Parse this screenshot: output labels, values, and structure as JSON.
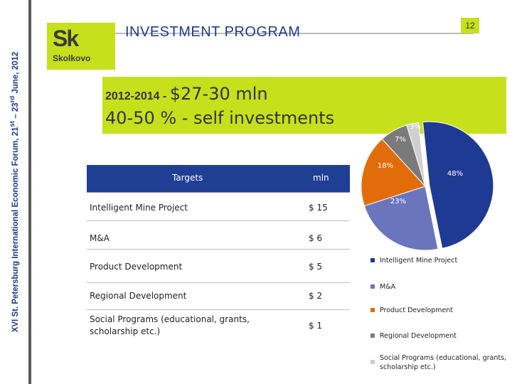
{
  "sidebar": {
    "text_main": "XVI St. Petersburg International Economic Forum, 21",
    "sup1": "st",
    "text_mid": " – 23",
    "sup2": "rd",
    "text_end": " June, 2012"
  },
  "logo": {
    "mark": "Sk",
    "word": "Skolkovo"
  },
  "header": {
    "title": "INVESTMENT PROGRAM",
    "page_number": "12"
  },
  "banner": {
    "years": "2012-2014 - ",
    "amount": "$27-30 mln",
    "line2": "40-50 % - self investments"
  },
  "table": {
    "headers": [
      "Targets",
      "mln"
    ],
    "rows": [
      {
        "target": "Intelligent Mine Project",
        "mln": "$ 15"
      },
      {
        "target": "M&A",
        "mln": "$ 6"
      },
      {
        "target": "Product Development",
        "mln": "$ 5"
      },
      {
        "target": "Regional Development",
        "mln": "$ 2"
      },
      {
        "target": "Social Programs (educational, grants, scholarship etc.)",
        "mln": "$ 1"
      }
    ]
  },
  "chart_data": {
    "type": "pie",
    "categories": [
      "Intelligent Mine Project",
      "M&A",
      "Product Development",
      "Regional Development",
      "Social Programs (educational, grants, scholarship etc.)"
    ],
    "values": [
      48,
      23,
      18,
      7,
      3
    ],
    "data_labels": [
      "48%",
      "23%",
      "18%",
      "7%",
      "3%"
    ],
    "colors": [
      "#1f3a93",
      "#6b75bd",
      "#e36c0a",
      "#7a7a7a",
      "#cfcfcf"
    ],
    "legend_position": "bottom"
  },
  "colors": {
    "accent_green": "#c6e01c",
    "table_header": "#1f3f95",
    "sidebar_text": "#1b3a8c"
  }
}
